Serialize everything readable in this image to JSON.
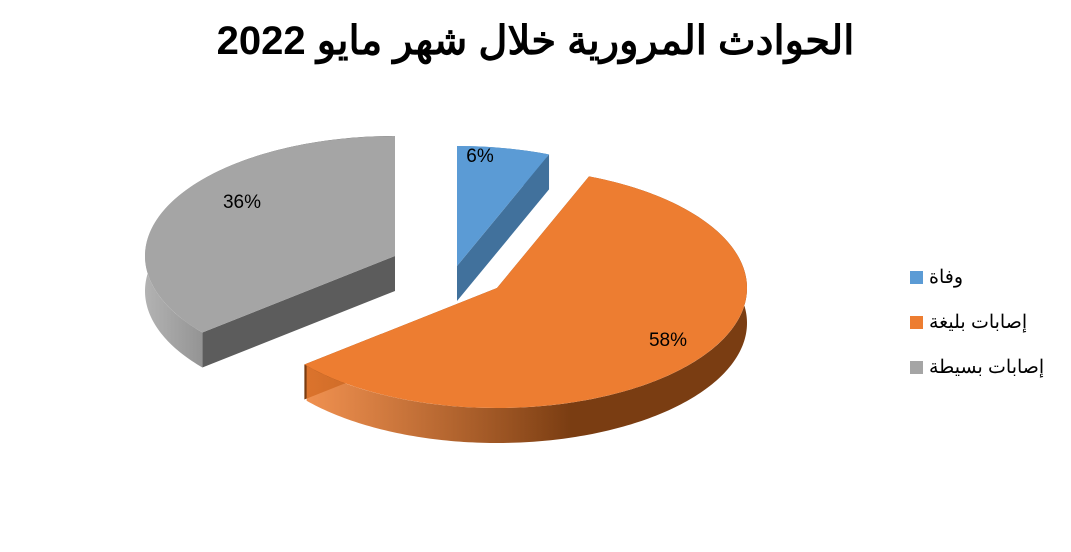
{
  "chart_data": {
    "type": "pie",
    "style": "3d-exploded",
    "title": "الحوادث المرورية خلال شهر مايو 2022",
    "categories": [
      "وفاة",
      "إصابات بليغة",
      "إصابات بسيطة"
    ],
    "values": [
      6,
      58,
      36
    ],
    "data_labels": [
      "6%",
      "58%",
      "36%"
    ],
    "colors": [
      "#5B9BD5",
      "#ED7D31",
      "#A5A5A5"
    ],
    "side_colors": [
      "#41719C",
      "#7A3D12",
      "#5C5C5C"
    ],
    "legend_position": "right"
  }
}
